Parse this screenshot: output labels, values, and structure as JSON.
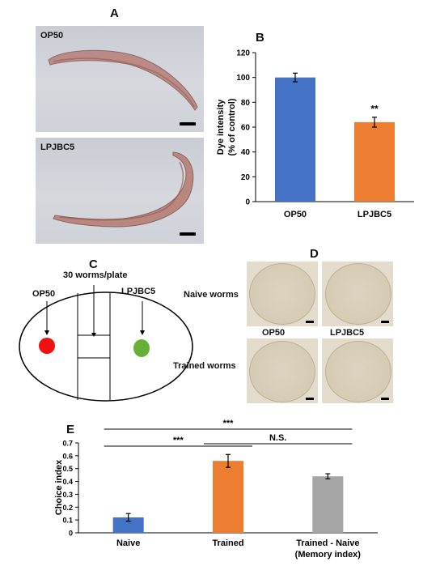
{
  "panels": {
    "a": {
      "letter": "A",
      "top_label": "OP50",
      "bottom_label": "LPJBC5"
    },
    "b": {
      "letter": "B",
      "significance": "**"
    },
    "c": {
      "letter": "C",
      "caption": "30 worms/plate",
      "left_label": "OP50",
      "right_label": "LPJBC5",
      "left_color": "#ee1111",
      "right_color": "#66b033"
    },
    "d": {
      "letter": "D",
      "row1_label": "Naive worms",
      "row2_label": "Trained worms",
      "col1_label": "OP50",
      "col2_label": "LPJBC5"
    },
    "e": {
      "letter": "E",
      "sig_naive_vs_memory": "***",
      "sig_naive_vs_trained": "***",
      "sig_trained_vs_memory": "N.S.",
      "xlabel_line2": "(Memory index)"
    }
  },
  "chart_data": [
    {
      "type": "bar",
      "categories": [
        "OP50",
        "LPJBC5"
      ],
      "values": [
        100,
        64
      ],
      "errors": [
        3.5,
        4
      ],
      "colors": [
        "#4472c4",
        "#ed7d31"
      ],
      "ylabel": "Dye intensity (% of control)",
      "ylabel_lines": [
        "Dye intensity",
        "(% of control)"
      ],
      "ylim": [
        0,
        120
      ],
      "yticks": [
        0,
        20,
        40,
        60,
        80,
        100,
        120
      ],
      "grid": false
    },
    {
      "type": "bar",
      "categories": [
        "Naive",
        "Trained",
        "Trained - Naive"
      ],
      "values": [
        0.12,
        0.56,
        0.44
      ],
      "errors": [
        0.03,
        0.05,
        0.02
      ],
      "colors": [
        "#4472c4",
        "#ed7d31",
        "#a5a5a5"
      ],
      "ylabel": "Choice index",
      "ylim": [
        0,
        0.7
      ],
      "yticks": [
        0,
        0.1,
        0.2,
        0.3,
        0.4,
        0.5,
        0.6,
        0.7
      ],
      "grid": false
    }
  ]
}
